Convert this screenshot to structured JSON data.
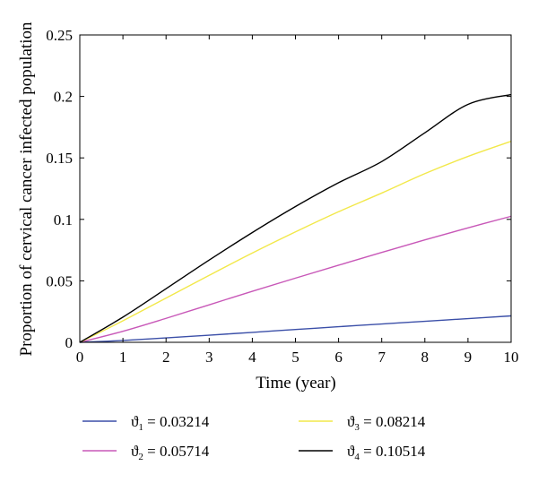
{
  "chart_data": {
    "type": "line",
    "title": "",
    "xlabel": "Time (year)",
    "ylabel": "Proportion of cervical cancer infected population",
    "xlim": [
      0,
      10
    ],
    "ylim": [
      0,
      0.25
    ],
    "xticks": [
      0,
      1,
      2,
      3,
      4,
      5,
      6,
      7,
      8,
      9,
      10
    ],
    "xtick_labels": [
      "0",
      "1",
      "2",
      "3",
      "4",
      "5",
      "6",
      "7",
      "8",
      "9",
      "10"
    ],
    "yticks": [
      0,
      0.05,
      0.1,
      0.15,
      0.2,
      0.25
    ],
    "ytick_labels": [
      "0",
      "0.05",
      "0.1",
      "0.15",
      "0.2",
      "0.25"
    ],
    "grid": false,
    "legend_position": "bottom",
    "x": [
      0,
      1,
      2,
      3,
      4,
      5,
      6,
      7,
      8,
      9,
      10
    ],
    "series": [
      {
        "name": "ϑ1 = 0.03214",
        "symbol": "ϑ",
        "subscript": "1",
        "value_text": " = 0.03214",
        "color": "#3b4fa8",
        "values": [
          0,
          0.0015,
          0.0036,
          0.0058,
          0.0081,
          0.0104,
          0.0127,
          0.0149,
          0.0171,
          0.0193,
          0.0215
        ]
      },
      {
        "name": "ϑ2 = 0.05714",
        "symbol": "ϑ",
        "subscript": "2",
        "value_text": " = 0.05714",
        "color": "#c858b8",
        "values": [
          0,
          0.009,
          0.0195,
          0.0305,
          0.0415,
          0.0522,
          0.0627,
          0.0731,
          0.0833,
          0.0931,
          0.1025
        ]
      },
      {
        "name": "ϑ3 = 0.08214",
        "symbol": "ϑ",
        "subscript": "3",
        "value_text": " = 0.08214",
        "color": "#f2e84a",
        "values": [
          0,
          0.0175,
          0.036,
          0.0545,
          0.0726,
          0.0898,
          0.1062,
          0.1214,
          0.1372,
          0.1512,
          0.1635
        ]
      },
      {
        "name": "ϑ4 = 0.10514",
        "symbol": "ϑ",
        "subscript": "4",
        "value_text": " = 0.10514",
        "color": "#000000",
        "values": [
          0,
          0.0205,
          0.0436,
          0.0669,
          0.0893,
          0.1104,
          0.1298,
          0.147,
          0.1704,
          0.1935,
          0.2015
        ]
      }
    ]
  }
}
